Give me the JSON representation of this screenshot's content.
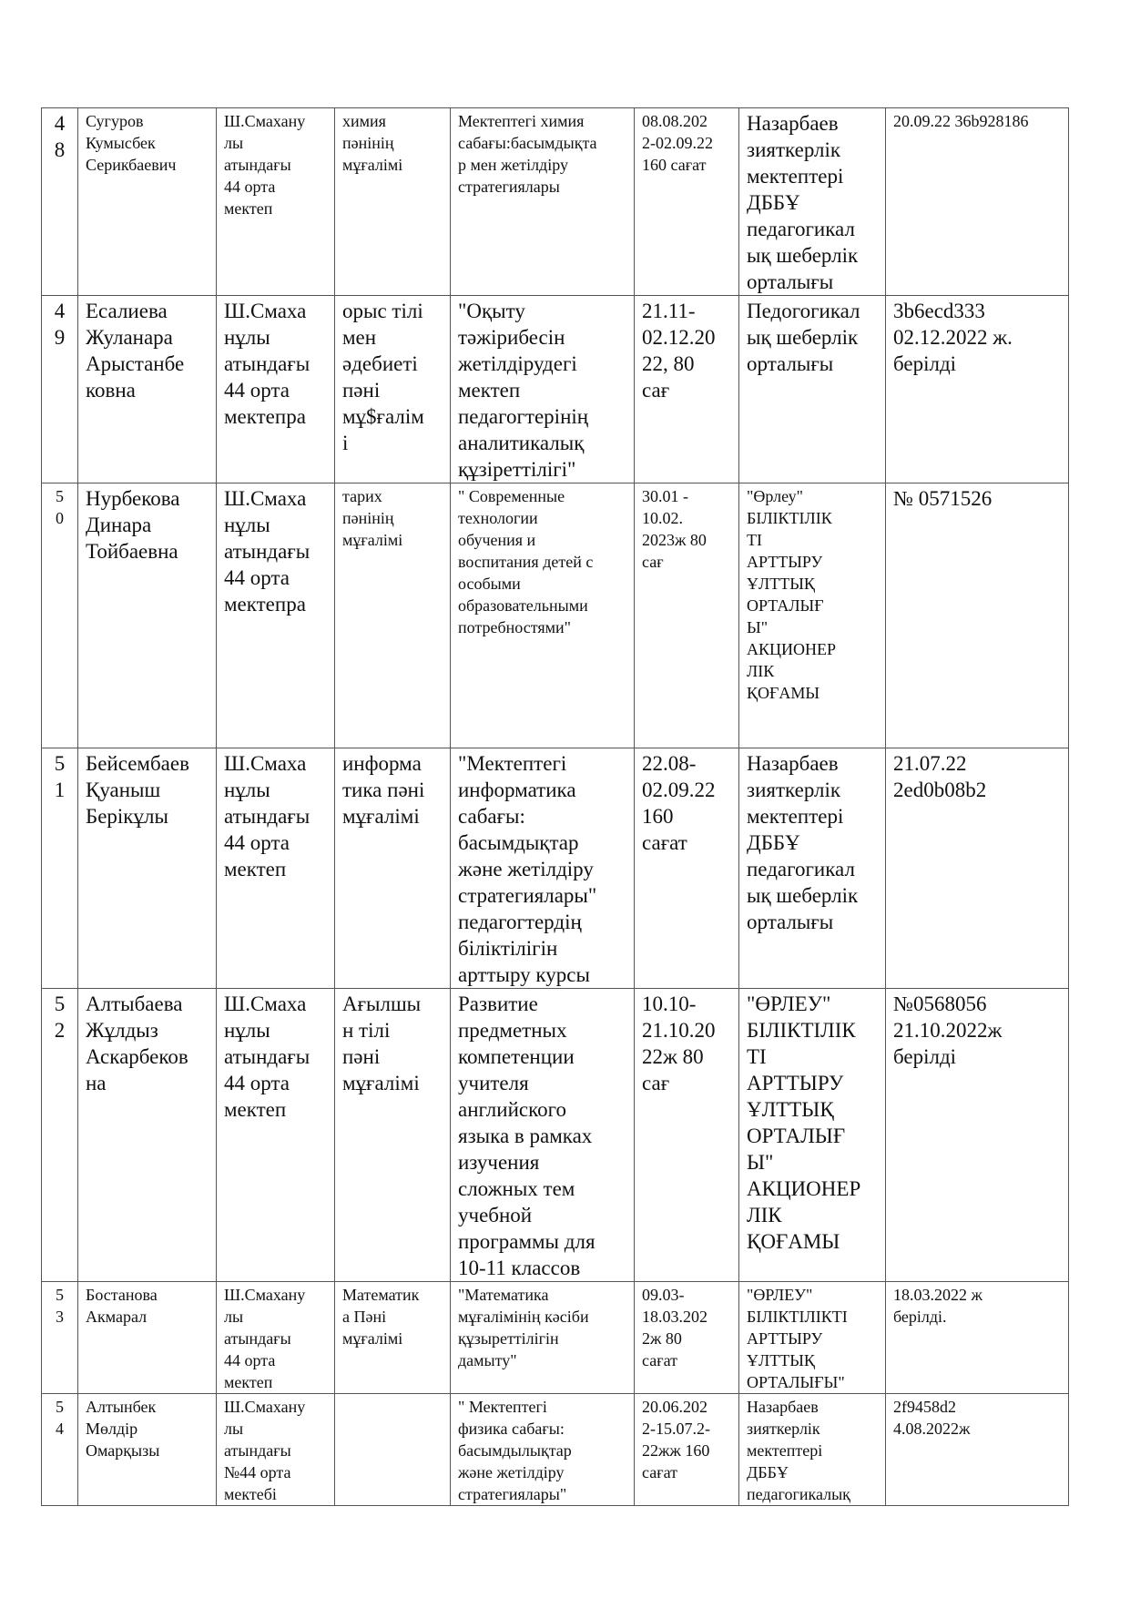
{
  "rows": [
    {
      "num": "4\n8",
      "name": "Сугуров\nКумысбек\nСерикбаевич",
      "school": "Ш.Смахану\nлы\nатындағы\n44 орта\nмектеп",
      "subject": "химия\nпәнінің\nмұғалімі",
      "course": "Мектептегі химия\nсабағы:басымдықта\nр мен жетілдіру\nстратегиялары",
      "dates": "08.08.202\n2-02.09.22\n160 сағат",
      "org": "Назарбаев\nзияткерлік\nмектептері\nДББҰ\nпедагогикал\nық шеберлік\nорталығы",
      "cert": "20.09.22 36b928186"
    },
    {
      "num": "4\n9",
      "name": "Есалиева\nЖуланара\nАрыстанбе\nковна",
      "school": "Ш.Смаха\nнұлы\nатындағы\n44 орта\nмектепра",
      "subject": "орыс тілі\nмен\nәдебиеті\nпәні\nмұ$ғалім\nі",
      "course": "\"Оқыту\nтәжірибесін\nжетілдірудегі\nмектеп\nпедагогтерінің\nаналитикалық\nқұзіреттілігі\"",
      "dates": "21.11-\n02.12.20\n22, 80\nсағ",
      "org": "Педогогикал\nық шеберлік\nорталығы",
      "cert": "3b6ecd333\n02.12.2022 ж.\nберілді"
    },
    {
      "num": "5\n0",
      "name": "Нурбекова\nДинара\nТойбаевна",
      "school": "Ш.Смаха\nнұлы\nатындағы\n44 орта\nмектепра",
      "subject": "тарих\nпәнінің\nмұғалімі",
      "course": "\" Современные\nтехнологии\nобучения  и\nвоспитания детей с\nособыми\nобразовательными\nпотребностями\"",
      "dates": "30.01 -\n10.02.\n2023ж  80\nсағ",
      "org": "\"Өрлеу\"\nБІЛІКТІЛІК\nТІ\nАРТТЫРУ\nҰЛТТЫҚ\nОРТАЛЫҒ\nЫ\"\nАКЦИОНЕР\nЛІК\nҚОҒАМЫ",
      "cert": "№ 0571526"
    },
    {
      "num": "5\n1",
      "name": "Бейсембаев\nҚуаныш\nБерікұлы",
      "school": "Ш.Смаха\nнұлы\nатындағы\n44 орта\nмектеп",
      "subject": "информа\nтика пәні\nмұғалімі",
      "course": "\"Мектептегі\nинформатика\nсабағы:\nбасымдықтар\nжәне жетілдіру\nстратегиялары\"\nпедагогтердің\nбіліктілігін\nарттыру курсы",
      "dates": "22.08-\n02.09.22\n160\nсағат",
      "org": "Назарбаев\nзияткерлік\nмектептері\nДББҰ\nпедагогикал\nық шеберлік\nорталығы",
      "cert": "21.07.22\n2ed0b08b2"
    },
    {
      "num": "5\n2",
      "name": "Алтыбаева\nЖұлдыз\nАскарбеков\nна",
      "school": "Ш.Смаха\nнұлы\nатындағы\n44 орта\nмектеп",
      "subject": "Ағылшы\nн тілі\nпәні\nмұғалімі",
      "course": "Развитие\nпредметных\nкомпетенции\nучителя\nанглийского\nязыка в рамках\nизучения\nсложных тем\nучебной\nпрограммы для\n10-11 классов",
      "dates": "10.10-\n21.10.20\n22ж 80\nсағ",
      "org": "\"ӨРЛЕУ\"\nБІЛІКТІЛІК\nТІ\nАРТТЫРУ\nҰЛТТЫҚ\nОРТАЛЫҒ\nЫ\"\nАКЦИОНЕР\nЛІК\nҚОҒАМЫ",
      "cert": "№0568056\n21.10.2022ж\nберілді"
    },
    {
      "num": "5\n3",
      "name": "Бостанова\nАкмарал",
      "school": "Ш.Смахану\nлы\nатындағы\n 44 орта\nмектеп",
      "subject": "Математик\nа Пәні\nмұғалімі",
      "course": "\"Математика\nмұғалімінің кәсіби\nқұзыреттілігін\nдамыту\"",
      "dates": "09.03-\n18.03.202\n2ж 80\nсағат",
      "org": "\"ӨРЛЕУ\"\nБІЛІКТІЛІКТІ\nАРТТЫРУ\nҰЛТТЫҚ\nОРТАЛЫҒЫ\"",
      "cert": "18.03.2022 ж\nберілді."
    },
    {
      "num": "5\n4",
      "name": "Алтынбек\nМөлдір\nОмарқызы",
      "school": "Ш.Смахану\nлы\nатындағы\n№44 орта\nмектебі",
      "subject": "",
      "course": "\" Мектептегі\nфизика сабағы:\nбасымдылықтар\nжәне жетілдіру\nстратегиялары\"",
      "dates": "20.06.202\n2-15.07.2-\n22жж 160\nсағат",
      "org": "Назарбаев\nзияткерлік\nмектептері\nДББҰ\nпедагогикалық",
      "cert": "2f9458d2\n4.08.2022ж"
    }
  ]
}
